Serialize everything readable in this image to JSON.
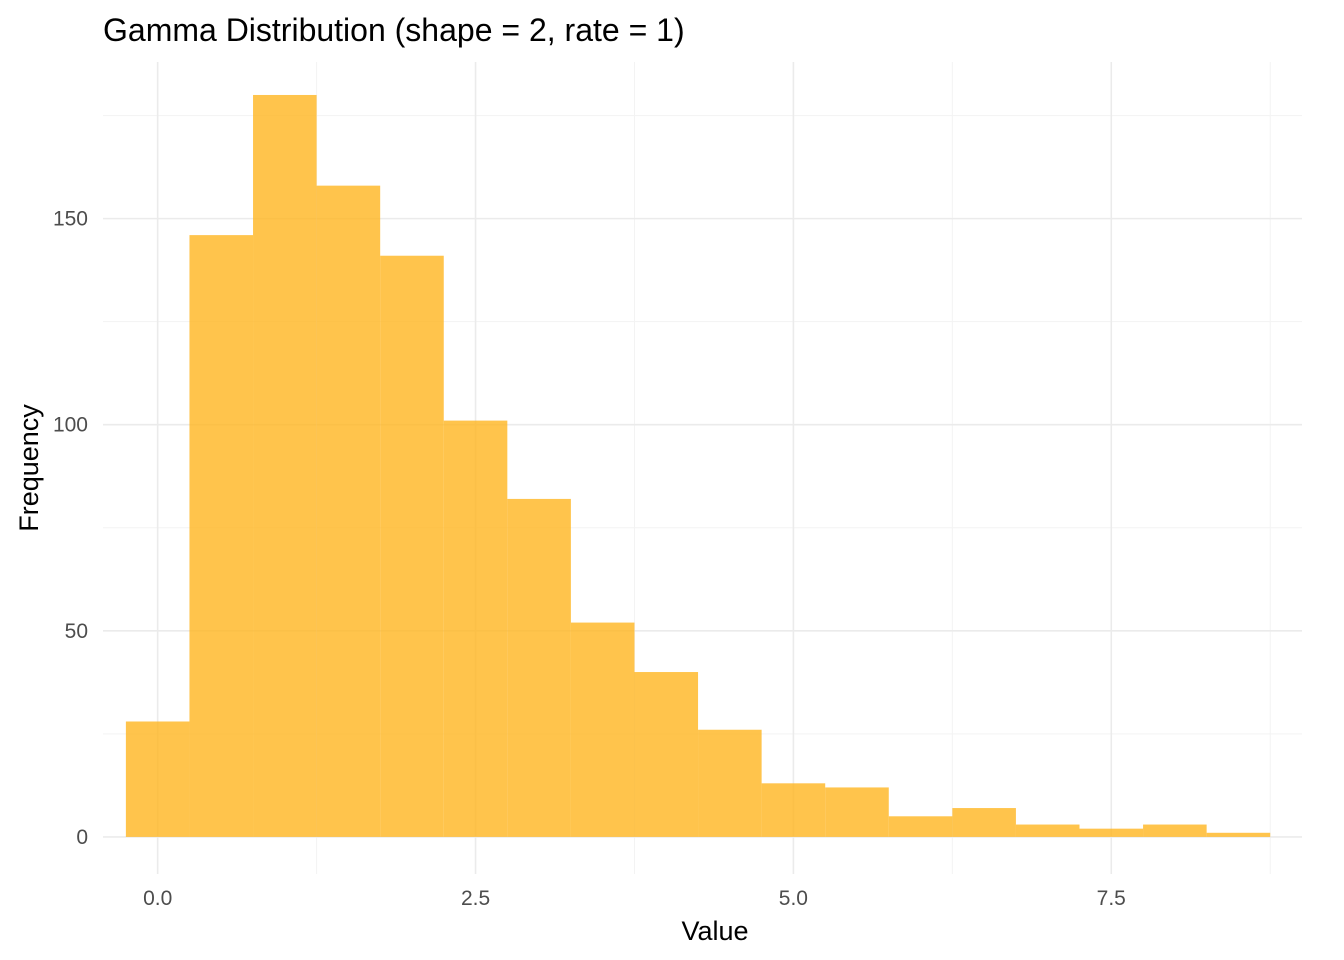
{
  "chart_data": {
    "type": "bar",
    "title": "Gamma Distribution (shape = 2, rate = 1)",
    "xlabel": "Value",
    "ylabel": "Frequency",
    "xlim": [
      -0.43,
      9.0
    ],
    "ylim": [
      -9,
      188
    ],
    "x_ticks": [
      0.0,
      2.5,
      5.0,
      7.5
    ],
    "x_tick_labels": [
      "0.0",
      "2.5",
      "5.0",
      "7.5"
    ],
    "y_ticks": [
      0,
      50,
      100,
      150
    ],
    "y_tick_labels": [
      "0",
      "50",
      "100",
      "150"
    ],
    "bin_width": 0.5,
    "bin_centers": [
      0.0,
      0.5,
      1.0,
      1.5,
      2.0,
      2.5,
      3.0,
      3.5,
      4.0,
      4.5,
      5.0,
      5.5,
      6.0,
      6.5,
      7.0,
      7.5,
      8.0,
      8.5
    ],
    "values": [
      28,
      146,
      180,
      158,
      141,
      101,
      82,
      52,
      40,
      26,
      13,
      12,
      5,
      7,
      3,
      2,
      3,
      1
    ],
    "bar_color": "#ffb31a",
    "bar_opacity": 0.78,
    "grid": true,
    "legend": "none"
  }
}
